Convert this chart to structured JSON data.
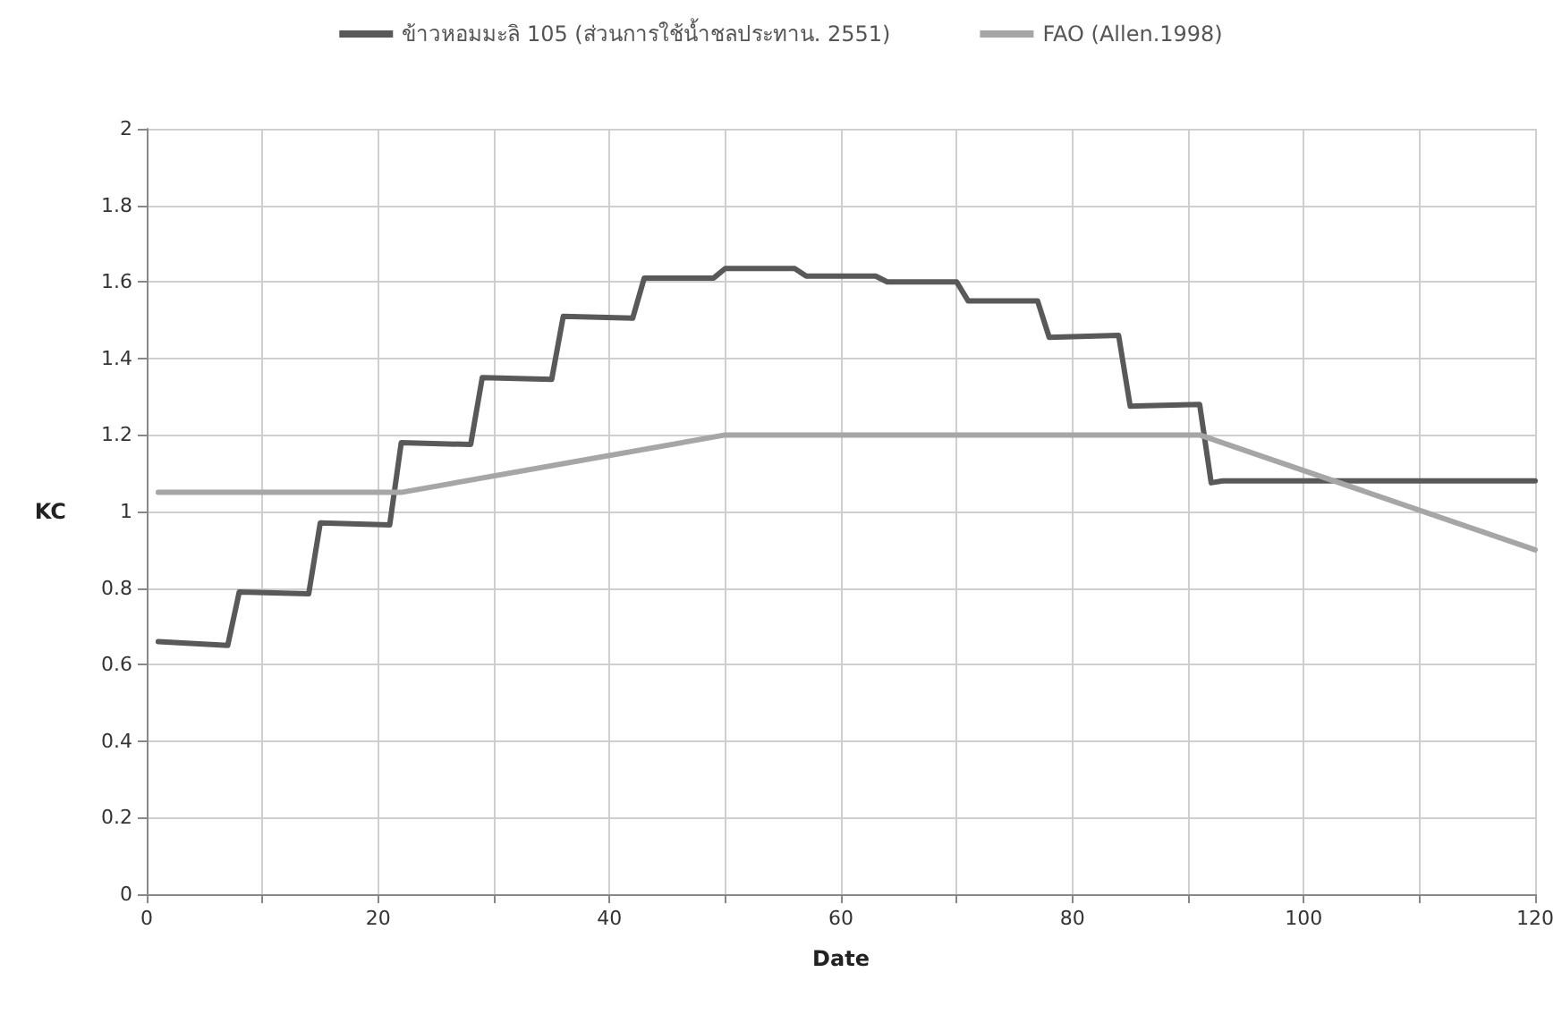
{
  "chart_data": {
    "type": "line",
    "xlabel": "Date",
    "ylabel": "KC",
    "legend": "top",
    "grid": true,
    "marker": "none",
    "line_style": "solid",
    "xlim": [
      0,
      120
    ],
    "ylim": [
      0,
      2
    ],
    "xticks": [
      0,
      {
        "value": 10,
        "label": null
      },
      20,
      {
        "value": 30,
        "label": null
      },
      40,
      {
        "value": 50,
        "label": null
      },
      60,
      {
        "value": 70,
        "label": null
      },
      80,
      {
        "value": 90,
        "label": null
      },
      100,
      {
        "value": 110,
        "label": null
      },
      120
    ],
    "yticks": [
      0,
      0.2,
      0.4,
      0.6,
      0.8,
      1,
      1.2,
      1.4,
      1.6,
      1.8,
      2
    ],
    "series": [
      {
        "name": "ข้าวหอมมะลิ 105 (ส่วนการใช้น้ำชลประทาน. 2551)",
        "color": "#595959",
        "x": [
          1,
          7,
          8,
          14,
          15,
          21,
          22,
          28,
          29,
          35,
          36,
          42,
          43,
          49,
          50,
          56,
          57,
          63,
          64,
          70,
          71,
          77,
          78,
          84,
          85,
          91,
          92,
          93,
          120
        ],
        "values": [
          0.66,
          0.65,
          0.79,
          0.785,
          0.97,
          0.965,
          1.18,
          1.175,
          1.35,
          1.345,
          1.51,
          1.505,
          1.61,
          1.61,
          1.635,
          1.635,
          1.615,
          1.615,
          1.6,
          1.6,
          1.55,
          1.55,
          1.455,
          1.46,
          1.275,
          1.28,
          1.075,
          1.08,
          1.08
        ]
      },
      {
        "name": "FAO (Allen.1998)",
        "color": "#a6a6a6",
        "x": [
          1,
          22,
          50,
          91,
          120
        ],
        "values": [
          1.05,
          1.05,
          1.2,
          1.2,
          0.9
        ]
      }
    ]
  }
}
